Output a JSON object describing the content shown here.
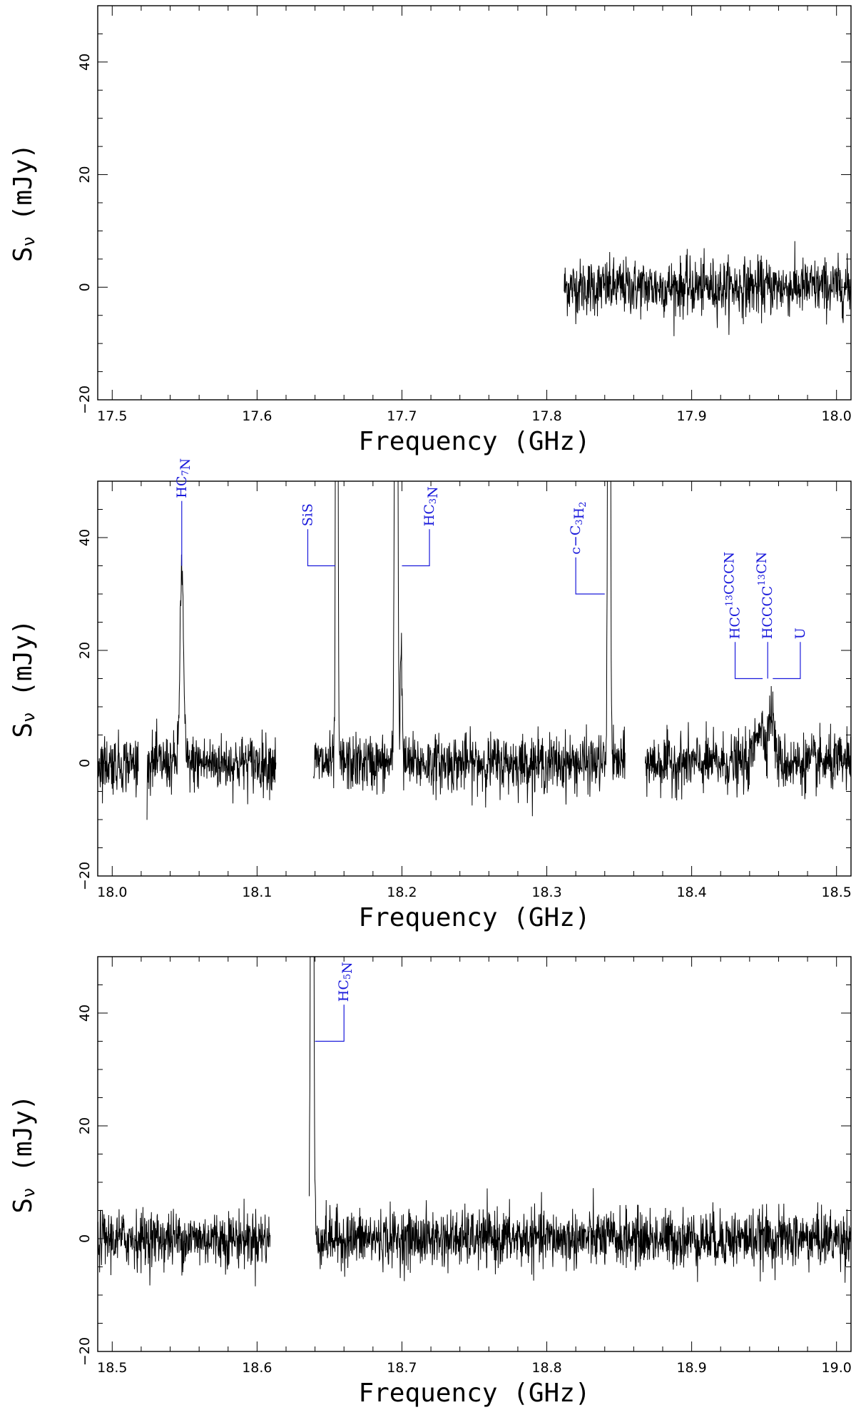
{
  "figure": {
    "ylabel_main": "S",
    "ylabel_sub": "ν",
    "ylabel_unit": " (mJy)",
    "xlabel": "Frequency (GHz)",
    "line_color": "#000000",
    "label_color": "#1a1adb"
  },
  "chart_data": [
    {
      "type": "line",
      "xlabel": "Frequency (GHz)",
      "ylabel": "Sν (mJy)",
      "xlim": [
        17.49,
        18.01
      ],
      "ylim": [
        -20,
        50
      ],
      "xticks": [
        "17.5",
        "17.6",
        "17.7",
        "17.8",
        "17.9",
        "18.0"
      ],
      "xtick_values": [
        17.5,
        17.6,
        17.7,
        17.8,
        17.9,
        18.0
      ],
      "yticks": [
        "−20",
        "0",
        "20",
        "40"
      ],
      "ytick_values": [
        -20,
        0,
        20,
        40
      ],
      "noise_rms": 2.5,
      "segments": [
        [
          17.812,
          18.01
        ]
      ],
      "lines": []
    },
    {
      "type": "line",
      "xlabel": "Frequency (GHz)",
      "ylabel": "Sν (mJy)",
      "xlim": [
        17.99,
        18.51
      ],
      "ylim": [
        -20,
        50
      ],
      "xticks": [
        "18.0",
        "18.1",
        "18.2",
        "18.3",
        "18.4",
        "18.5"
      ],
      "xtick_values": [
        18.0,
        18.1,
        18.2,
        18.3,
        18.4,
        18.5
      ],
      "yticks": [
        "−20",
        "0",
        "20",
        "40"
      ],
      "ytick_values": [
        -20,
        0,
        20,
        40
      ],
      "noise_rms": 2.5,
      "segments": [
        [
          17.99,
          18.018
        ],
        [
          18.024,
          18.113
        ],
        [
          18.139,
          18.354
        ],
        [
          18.368,
          18.51
        ]
      ],
      "peaks": [
        {
          "x": 18.048,
          "peak": 35,
          "width": 0.0012
        },
        {
          "x": 18.155,
          "peak": 200,
          "width": 0.0006
        },
        {
          "x": 18.196,
          "peak": 200,
          "width": 0.0008
        },
        {
          "x": 18.1995,
          "peak": 22,
          "width": 0.0006
        },
        {
          "x": 18.343,
          "peak": 200,
          "width": 0.0007
        },
        {
          "x": 18.447,
          "peak": 7,
          "width": 0.003
        },
        {
          "x": 18.455,
          "peak": 9,
          "width": 0.002
        }
      ],
      "lines": [
        {
          "parts": [
            {
              "t": "HC"
            },
            {
              "t": "7",
              "s": "sub"
            },
            {
              "t": "N"
            }
          ],
          "x": 18.048,
          "y_low": 35,
          "x_text": 18.048,
          "y_text": 47
        },
        {
          "parts": [
            {
              "t": "SiS"
            }
          ],
          "x": 18.154,
          "y_low": 35,
          "x_text": 18.135,
          "y_text": 42
        },
        {
          "parts": [
            {
              "t": "HC"
            },
            {
              "t": "3",
              "s": "sub"
            },
            {
              "t": "N"
            }
          ],
          "x": 18.2,
          "y_low": 35,
          "x_text": 18.219,
          "y_text": 42
        },
        {
          "parts": [
            {
              "t": "c−C"
            },
            {
              "t": "3",
              "s": "sub"
            },
            {
              "t": "H"
            },
            {
              "t": "2",
              "s": "sub"
            }
          ],
          "x": 18.34,
          "y_low": 30,
          "x_text": 18.32,
          "y_text": 37
        },
        {
          "parts": [
            {
              "t": "HCC"
            },
            {
              "t": "13",
              "s": "sup"
            },
            {
              "t": "CCCN"
            }
          ],
          "x": 18.449,
          "y_low": 15,
          "x_text": 18.43,
          "y_text": 22
        },
        {
          "parts": [
            {
              "t": "HCCCC"
            },
            {
              "t": "13",
              "s": "sup"
            },
            {
              "t": "CN"
            }
          ],
          "x": 18.4525,
          "y_low": 15,
          "x_text": 18.4525,
          "y_text": 22
        },
        {
          "parts": [
            {
              "t": "U"
            }
          ],
          "x": 18.456,
          "y_low": 15,
          "x_text": 18.475,
          "y_text": 22
        }
      ]
    },
    {
      "type": "line",
      "xlabel": "Frequency (GHz)",
      "ylabel": "Sν (mJy)",
      "xlim": [
        18.49,
        19.01
      ],
      "ylim": [
        -20,
        50
      ],
      "xticks": [
        "18.5",
        "18.6",
        "18.7",
        "18.8",
        "18.9",
        "19.0"
      ],
      "xtick_values": [
        18.5,
        18.6,
        18.7,
        18.8,
        18.9,
        19.0
      ],
      "yticks": [
        "−20",
        "0",
        "20",
        "40"
      ],
      "ytick_values": [
        -20,
        0,
        20,
        40
      ],
      "noise_rms": 2.5,
      "segments": [
        [
          18.49,
          18.609
        ],
        [
          18.636,
          19.01
        ]
      ],
      "peaks": [
        {
          "x": 18.638,
          "peak": 200,
          "width": 0.0008
        }
      ],
      "lines": [
        {
          "parts": [
            {
              "t": "HC"
            },
            {
              "t": "5",
              "s": "sub"
            },
            {
              "t": "N"
            }
          ],
          "x": 18.64,
          "y_low": 35,
          "x_text": 18.66,
          "y_text": 42
        }
      ]
    }
  ]
}
